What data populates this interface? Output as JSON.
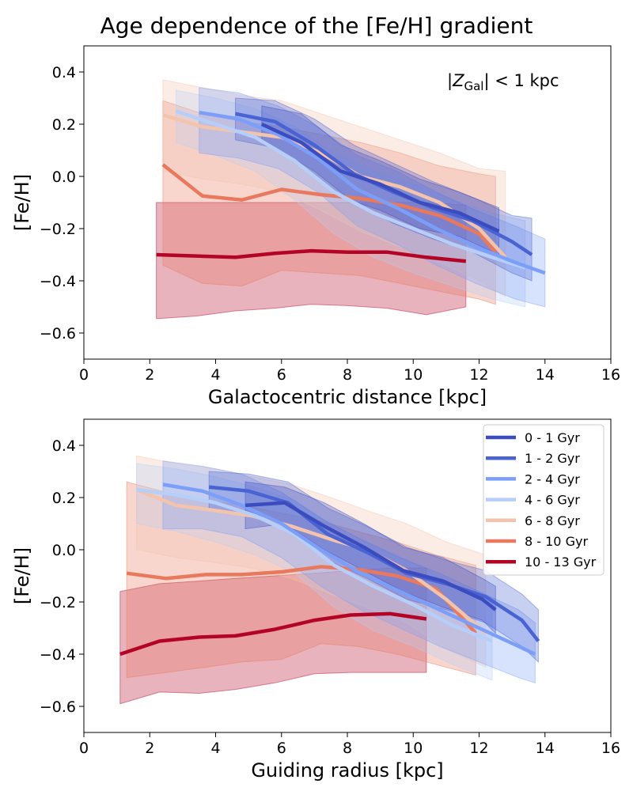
{
  "figure_title": "Age dependence of the [Fe/H] gradient",
  "colors": {
    "0 - 1 Gyr": "#3b4cc0",
    "1 - 2 Gyr": "#4a63d3",
    "2 - 4 Gyr": "#7b9ff9",
    "4 - 6 Gyr": "#b6cefa",
    "6 - 8 Gyr": "#f3c3ab",
    "8 - 10 Gyr": "#e8785e",
    "10 - 13 Gyr": "#b40426"
  },
  "chart_data": [
    {
      "type": "line",
      "panel": "top",
      "title": "",
      "xlabel": "Galactocentric distance [kpc]",
      "ylabel": "[Fe/H]",
      "xlim": [
        0,
        16
      ],
      "ylim": [
        -0.7,
        0.5
      ],
      "xticks": [
        "0",
        "2",
        "4",
        "6",
        "8",
        "10",
        "12",
        "14",
        "16"
      ],
      "yticks": [
        "0.4",
        "0.2",
        "0.0",
        "−0.2",
        "−0.4",
        "−0.6"
      ],
      "annotation_prefix": "|Z",
      "annotation_sub": "Gal",
      "annotation_suffix": "| < 1 kpc",
      "legend": "none",
      "series": [
        {
          "name": "10 - 13 Gyr",
          "x": [
            2.2,
            3.4,
            4.6,
            5.8,
            6.9,
            8.0,
            9.2,
            10.4,
            11.6
          ],
          "y": [
            -0.3,
            -0.305,
            -0.31,
            -0.295,
            -0.285,
            -0.29,
            -0.29,
            -0.31,
            -0.325
          ],
          "hi": [
            -0.1,
            -0.1,
            -0.1,
            -0.1,
            -0.1,
            -0.1,
            -0.1,
            -0.1,
            -0.11
          ],
          "lo": [
            -0.545,
            -0.535,
            -0.515,
            -0.505,
            -0.49,
            -0.495,
            -0.505,
            -0.53,
            -0.5
          ]
        },
        {
          "name": "8 - 10 Gyr",
          "x": [
            2.4,
            3.6,
            4.8,
            6.0,
            7.2,
            8.4,
            9.6,
            10.8,
            12.0,
            12.5
          ],
          "y": [
            0.045,
            -0.075,
            -0.09,
            -0.05,
            -0.07,
            -0.085,
            -0.11,
            -0.15,
            -0.22,
            -0.29
          ],
          "hi": [
            0.29,
            0.24,
            0.21,
            0.19,
            0.16,
            0.13,
            0.09,
            0.04,
            0.01,
            0.0
          ],
          "lo": [
            -0.34,
            -0.41,
            -0.42,
            -0.36,
            -0.37,
            -0.38,
            -0.41,
            -0.44,
            -0.47,
            -0.49
          ]
        },
        {
          "name": "6 - 8 Gyr",
          "x": [
            2.4,
            3.6,
            4.8,
            6.0,
            7.2,
            8.4,
            9.6,
            10.8,
            12.0,
            12.8
          ],
          "y": [
            0.235,
            0.19,
            0.17,
            0.15,
            0.09,
            0.0,
            -0.04,
            -0.1,
            -0.2,
            -0.31
          ],
          "hi": [
            0.37,
            0.34,
            0.31,
            0.29,
            0.24,
            0.19,
            0.14,
            0.09,
            0.03,
            0.02
          ],
          "lo": [
            0.02,
            -0.01,
            -0.03,
            -0.06,
            -0.13,
            -0.21,
            -0.27,
            -0.33,
            -0.4,
            -0.46
          ]
        },
        {
          "name": "4 - 6 Gyr",
          "x": [
            2.8,
            4.0,
            5.2,
            6.4,
            7.6,
            8.8,
            10.0,
            11.2,
            12.4,
            13.4
          ],
          "y": [
            0.25,
            0.2,
            0.15,
            0.06,
            -0.06,
            -0.14,
            -0.2,
            -0.26,
            -0.31,
            -0.35
          ],
          "hi": [
            0.33,
            0.3,
            0.26,
            0.19,
            0.09,
            0.02,
            -0.03,
            -0.09,
            -0.14,
            -0.17
          ],
          "lo": [
            0.13,
            0.08,
            0.02,
            -0.09,
            -0.22,
            -0.31,
            -0.37,
            -0.42,
            -0.47,
            -0.5
          ]
        },
        {
          "name": "2 - 4 Gyr",
          "x": [
            3.5,
            4.7,
            5.9,
            7.1,
            8.3,
            9.5,
            10.7,
            11.9,
            13.1,
            14.0
          ],
          "y": [
            0.245,
            0.22,
            0.16,
            0.07,
            -0.05,
            -0.12,
            -0.2,
            -0.27,
            -0.33,
            -0.37
          ],
          "hi": [
            0.34,
            0.32,
            0.27,
            0.19,
            0.08,
            0.02,
            -0.06,
            -0.13,
            -0.19,
            -0.24
          ],
          "lo": [
            0.09,
            0.07,
            0.03,
            -0.06,
            -0.19,
            -0.26,
            -0.34,
            -0.41,
            -0.47,
            -0.5
          ]
        },
        {
          "name": "1 - 2 Gyr",
          "x": [
            4.6,
            5.8,
            7.0,
            8.2,
            9.4,
            10.6,
            11.8,
            13.0,
            13.6
          ],
          "y": [
            0.24,
            0.21,
            0.12,
            0.01,
            -0.06,
            -0.12,
            -0.17,
            -0.25,
            -0.3
          ],
          "hi": [
            0.3,
            0.29,
            0.22,
            0.12,
            0.05,
            -0.02,
            -0.08,
            -0.15,
            -0.16
          ],
          "lo": [
            0.14,
            0.11,
            0.02,
            -0.1,
            -0.18,
            -0.24,
            -0.29,
            -0.37,
            -0.4
          ]
        },
        {
          "name": "0 - 1 Gyr",
          "x": [
            5.4,
            6.6,
            7.8,
            9.0,
            10.2,
            11.4,
            12.6
          ],
          "y": [
            0.2,
            0.13,
            0.02,
            -0.03,
            -0.1,
            -0.14,
            -0.21
          ],
          "hi": [
            0.27,
            0.24,
            0.12,
            0.06,
            -0.01,
            -0.06,
            -0.12
          ],
          "lo": [
            0.13,
            0.04,
            -0.08,
            -0.13,
            -0.2,
            -0.23,
            -0.3
          ]
        }
      ]
    },
    {
      "type": "line",
      "panel": "bottom",
      "title": "",
      "xlabel": "Guiding radius [kpc]",
      "ylabel": "[Fe/H]",
      "xlim": [
        0,
        16
      ],
      "ylim": [
        -0.7,
        0.5
      ],
      "xticks": [
        "0",
        "2",
        "4",
        "6",
        "8",
        "10",
        "12",
        "14",
        "16"
      ],
      "yticks": [
        "0.4",
        "0.2",
        "0.0",
        "−0.2",
        "−0.4",
        "−0.6"
      ],
      "legend": "top-right",
      "series": [
        {
          "name": "10 - 13 Gyr",
          "x": [
            1.1,
            2.3,
            3.5,
            4.6,
            5.8,
            7.0,
            8.1,
            9.3,
            10.4
          ],
          "y": [
            -0.4,
            -0.35,
            -0.335,
            -0.33,
            -0.305,
            -0.27,
            -0.25,
            -0.245,
            -0.265
          ],
          "hi": [
            -0.16,
            -0.13,
            -0.12,
            -0.11,
            -0.1,
            -0.09,
            -0.08,
            -0.07,
            -0.07
          ],
          "lo": [
            -0.59,
            -0.545,
            -0.55,
            -0.535,
            -0.51,
            -0.475,
            -0.47,
            -0.47,
            -0.47
          ]
        },
        {
          "name": "8 - 10 Gyr",
          "x": [
            1.3,
            2.5,
            3.7,
            4.8,
            6.0,
            7.2,
            8.3,
            9.5,
            10.7,
            11.9
          ],
          "y": [
            -0.09,
            -0.11,
            -0.095,
            -0.095,
            -0.085,
            -0.065,
            -0.075,
            -0.1,
            -0.15,
            -0.32
          ],
          "hi": [
            0.26,
            0.22,
            0.19,
            0.17,
            0.14,
            0.11,
            0.07,
            0.03,
            -0.02,
            -0.06
          ],
          "lo": [
            -0.49,
            -0.47,
            -0.45,
            -0.43,
            -0.42,
            -0.36,
            -0.37,
            -0.4,
            -0.44,
            -0.48
          ]
        },
        {
          "name": "6 - 8 Gyr",
          "x": [
            1.6,
            2.8,
            4.0,
            5.1,
            6.3,
            7.5,
            8.6,
            9.8,
            11.0,
            12.2
          ],
          "y": [
            0.23,
            0.17,
            0.15,
            0.13,
            0.09,
            0.04,
            0.0,
            -0.08,
            -0.19,
            -0.32
          ],
          "hi": [
            0.36,
            0.33,
            0.31,
            0.28,
            0.25,
            0.2,
            0.15,
            0.1,
            0.03,
            -0.02
          ],
          "lo": [
            0.0,
            -0.03,
            -0.05,
            -0.07,
            -0.11,
            -0.17,
            -0.22,
            -0.28,
            -0.38,
            -0.45
          ]
        },
        {
          "name": "4 - 6 Gyr",
          "x": [
            1.6,
            2.8,
            4.0,
            5.2,
            6.4,
            7.6,
            8.8,
            10.0,
            11.2,
            12.4
          ],
          "y": [
            0.23,
            0.21,
            0.18,
            0.13,
            0.06,
            -0.06,
            -0.14,
            -0.21,
            -0.29,
            -0.35
          ],
          "hi": [
            0.33,
            0.31,
            0.28,
            0.24,
            0.19,
            0.09,
            0.02,
            -0.05,
            -0.13,
            -0.19
          ],
          "lo": [
            0.1,
            0.07,
            0.03,
            -0.02,
            -0.09,
            -0.22,
            -0.31,
            -0.37,
            -0.44,
            -0.5
          ]
        },
        {
          "name": "2 - 4 Gyr",
          "x": [
            2.4,
            3.6,
            4.8,
            6.0,
            7.2,
            8.4,
            9.6,
            10.8,
            12.0,
            13.2,
            13.7
          ],
          "y": [
            0.25,
            0.225,
            0.17,
            0.1,
            0.0,
            -0.09,
            -0.16,
            -0.23,
            -0.3,
            -0.37,
            -0.4
          ],
          "hi": [
            0.34,
            0.32,
            0.29,
            0.22,
            0.12,
            0.04,
            -0.03,
            -0.09,
            -0.16,
            -0.23,
            -0.28
          ],
          "lo": [
            0.08,
            0.08,
            0.05,
            -0.03,
            -0.14,
            -0.23,
            -0.3,
            -0.37,
            -0.43,
            -0.49,
            -0.51
          ]
        },
        {
          "name": "1 - 2 Gyr",
          "x": [
            3.8,
            5.0,
            6.2,
            7.4,
            8.6,
            9.8,
            11.0,
            12.2,
            13.3,
            13.8
          ],
          "y": [
            0.24,
            0.225,
            0.18,
            0.06,
            -0.01,
            -0.09,
            -0.13,
            -0.18,
            -0.27,
            -0.35
          ],
          "hi": [
            0.3,
            0.29,
            0.26,
            0.16,
            0.09,
            0.01,
            -0.04,
            -0.08,
            -0.17,
            -0.23
          ],
          "lo": [
            0.15,
            0.14,
            0.09,
            -0.04,
            -0.11,
            -0.19,
            -0.23,
            -0.28,
            -0.37,
            -0.43
          ]
        },
        {
          "name": "0 - 1 Gyr",
          "x": [
            4.9,
            6.1,
            7.3,
            8.5,
            9.7,
            10.9,
            12.1,
            12.5
          ],
          "y": [
            0.17,
            0.18,
            0.09,
            0.01,
            -0.08,
            -0.12,
            -0.19,
            -0.23
          ],
          "hi": [
            0.26,
            0.24,
            0.18,
            0.1,
            0.01,
            -0.03,
            -0.11,
            -0.14
          ],
          "lo": [
            0.08,
            0.1,
            0.0,
            -0.08,
            -0.16,
            -0.22,
            -0.27,
            -0.32
          ]
        }
      ]
    }
  ]
}
